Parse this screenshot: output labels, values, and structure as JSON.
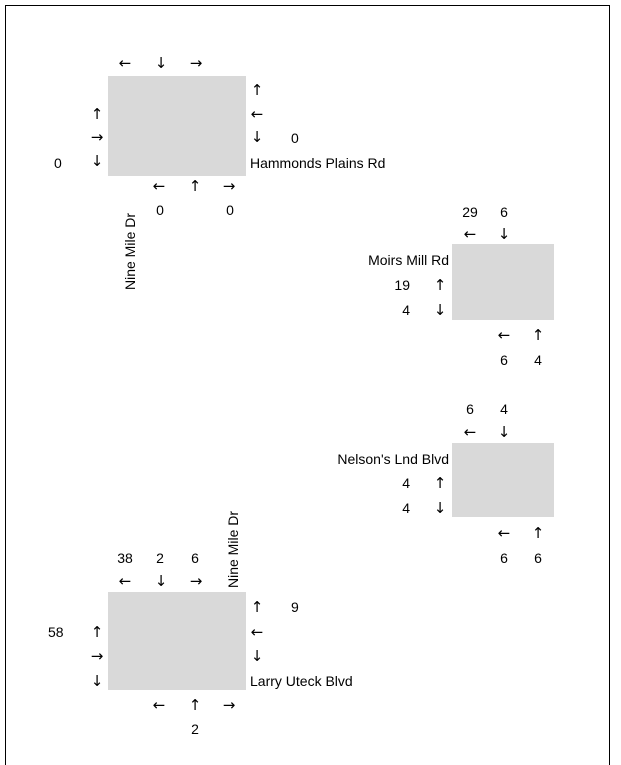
{
  "icons": {
    "left": "←",
    "down": "↓",
    "right": "→",
    "up": "↑"
  },
  "intersections": {
    "hammonds": {
      "road_label": "Hammonds Plains Rd",
      "side_road_label": "Nine Mile Dr",
      "approach_east_count": "0",
      "approach_west_count": "0",
      "approach_south_left": "0",
      "approach_south_right": "0"
    },
    "moirs": {
      "road_label": "Moirs Mill Rd",
      "top_left": "29",
      "top_right": "6",
      "west_up": "19",
      "west_down": "4",
      "bottom_left": "6",
      "bottom_right": "4"
    },
    "nelson": {
      "road_label": "Nelson's Lnd Blvd",
      "top_left": "6",
      "top_right": "4",
      "west_up": "4",
      "west_down": "4",
      "bottom_left": "6",
      "bottom_right": "6"
    },
    "larry": {
      "road_label": "Larry Uteck Blvd",
      "side_road_label": "Nine Mile Dr",
      "top_1": "38",
      "top_2": "2",
      "top_3": "6",
      "east_up": "9",
      "west_up": "58",
      "bottom_mid": "2"
    }
  }
}
